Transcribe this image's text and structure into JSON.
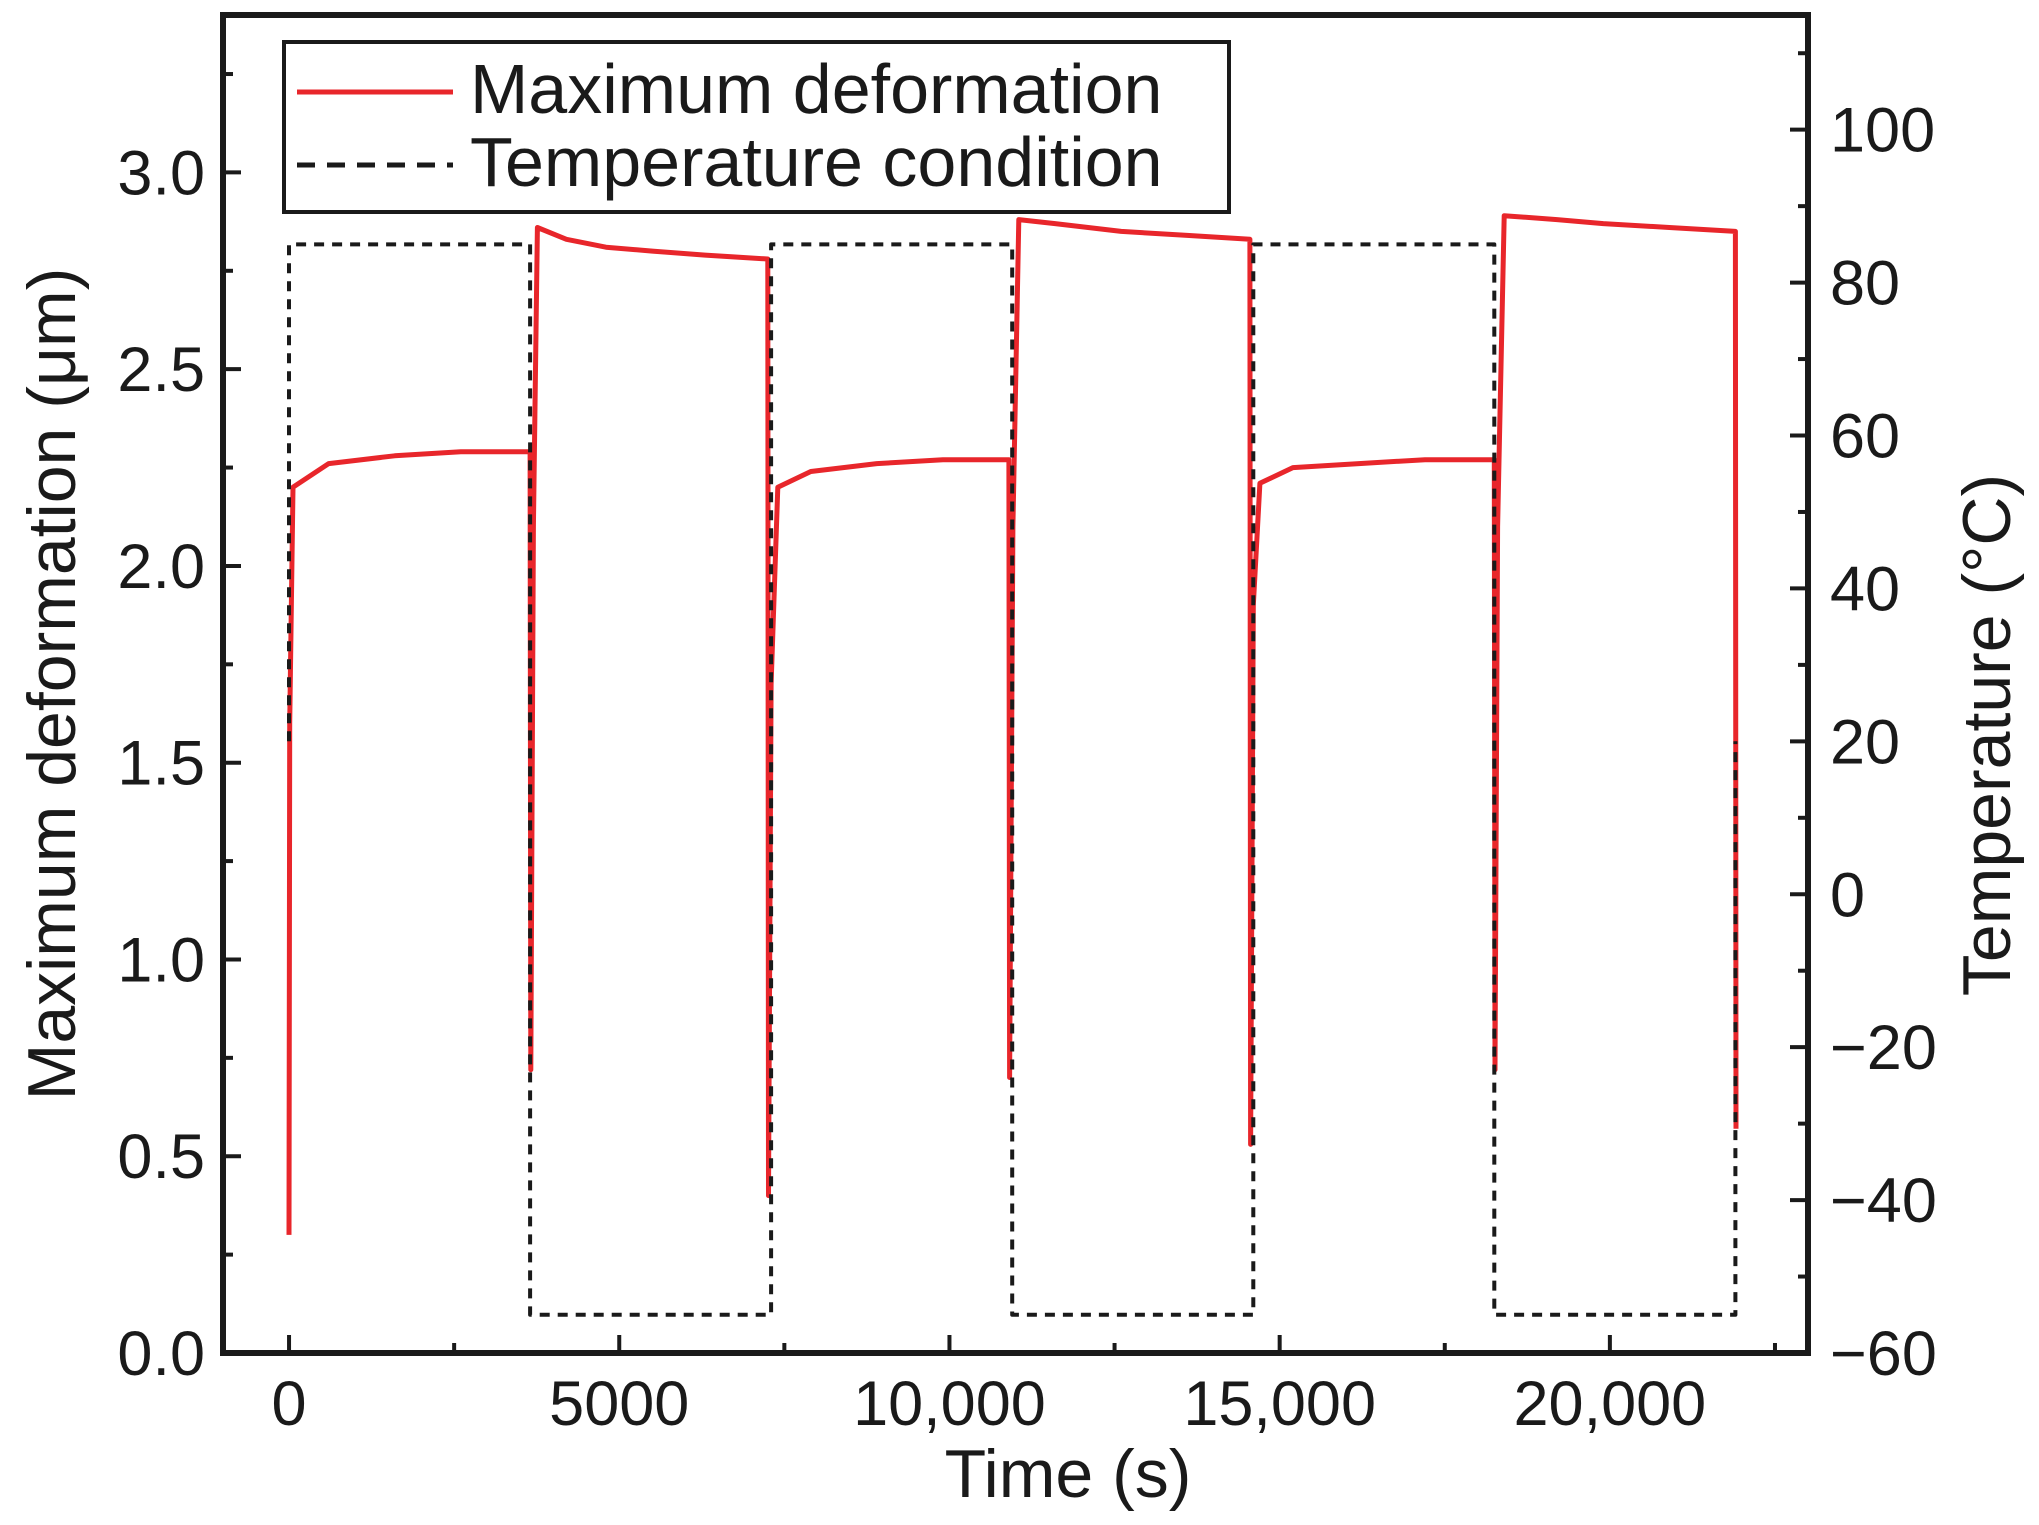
{
  "chart_data": {
    "type": "line",
    "title": "",
    "xlabel": "Time (s)",
    "ylabel": "Maximum deformation (μm)",
    "y2label": "Temperature (°C)",
    "xlim": [
      -1000,
      23000
    ],
    "ylim": [
      0,
      3.4
    ],
    "y2lim": [
      -60,
      115
    ],
    "x_ticks": [
      0,
      5000,
      10000,
      15000,
      20000
    ],
    "x_tick_labels": [
      "0",
      "5000",
      "10,000",
      "15,000",
      "20,000"
    ],
    "y_ticks": [
      0,
      0.5,
      1.0,
      1.5,
      2.0,
      2.5,
      3.0
    ],
    "y_tick_labels": [
      "0.0",
      "0.5",
      "1.0",
      "1.5",
      "2.0",
      "2.5",
      "3.0"
    ],
    "y2_ticks": [
      -60,
      -40,
      -20,
      0,
      20,
      40,
      60,
      80,
      100
    ],
    "y2_tick_labels": [
      "−60",
      "−40",
      "−20",
      "0",
      "20",
      "40",
      "60",
      "80",
      "100"
    ],
    "grid": false,
    "legend_position": "top-left",
    "series": [
      {
        "name": "Maximum deformation",
        "axis": "left",
        "color": "#e8262b",
        "style": "solid",
        "x": [
          0,
          10,
          60,
          600,
          1600,
          2600,
          3650,
          3660,
          3700,
          3760,
          4200,
          4800,
          5500,
          6300,
          7250,
          7260,
          7300,
          7400,
          7900,
          8900,
          9900,
          10900,
          10910,
          10960,
          11050,
          11600,
          12600,
          13600,
          14550,
          14560,
          14600,
          14700,
          15200,
          16200,
          17200,
          18250,
          18260,
          18300,
          18400,
          19200,
          19900,
          20900,
          21900,
          21910
        ],
        "y": [
          0.3,
          1.6,
          2.2,
          2.26,
          2.28,
          2.29,
          2.29,
          0.72,
          2.1,
          2.86,
          2.83,
          2.81,
          2.8,
          2.79,
          2.78,
          0.4,
          1.7,
          2.2,
          2.24,
          2.26,
          2.27,
          2.27,
          0.7,
          2.1,
          2.88,
          2.87,
          2.85,
          2.84,
          2.83,
          0.53,
          1.9,
          2.21,
          2.25,
          2.26,
          2.27,
          2.27,
          0.72,
          2.1,
          2.89,
          2.88,
          2.87,
          2.86,
          2.85,
          0.57
        ]
      },
      {
        "name": "Temperature condition",
        "axis": "right",
        "color": "#1a1a1a",
        "style": "dashed",
        "x": [
          0,
          0,
          3650,
          3650,
          7300,
          7300,
          10950,
          10950,
          14600,
          14600,
          18250,
          18250,
          21900,
          21900
        ],
        "y": [
          20,
          85,
          85,
          -55,
          -55,
          85,
          85,
          -55,
          -55,
          85,
          85,
          -55,
          -55,
          20
        ]
      }
    ]
  }
}
